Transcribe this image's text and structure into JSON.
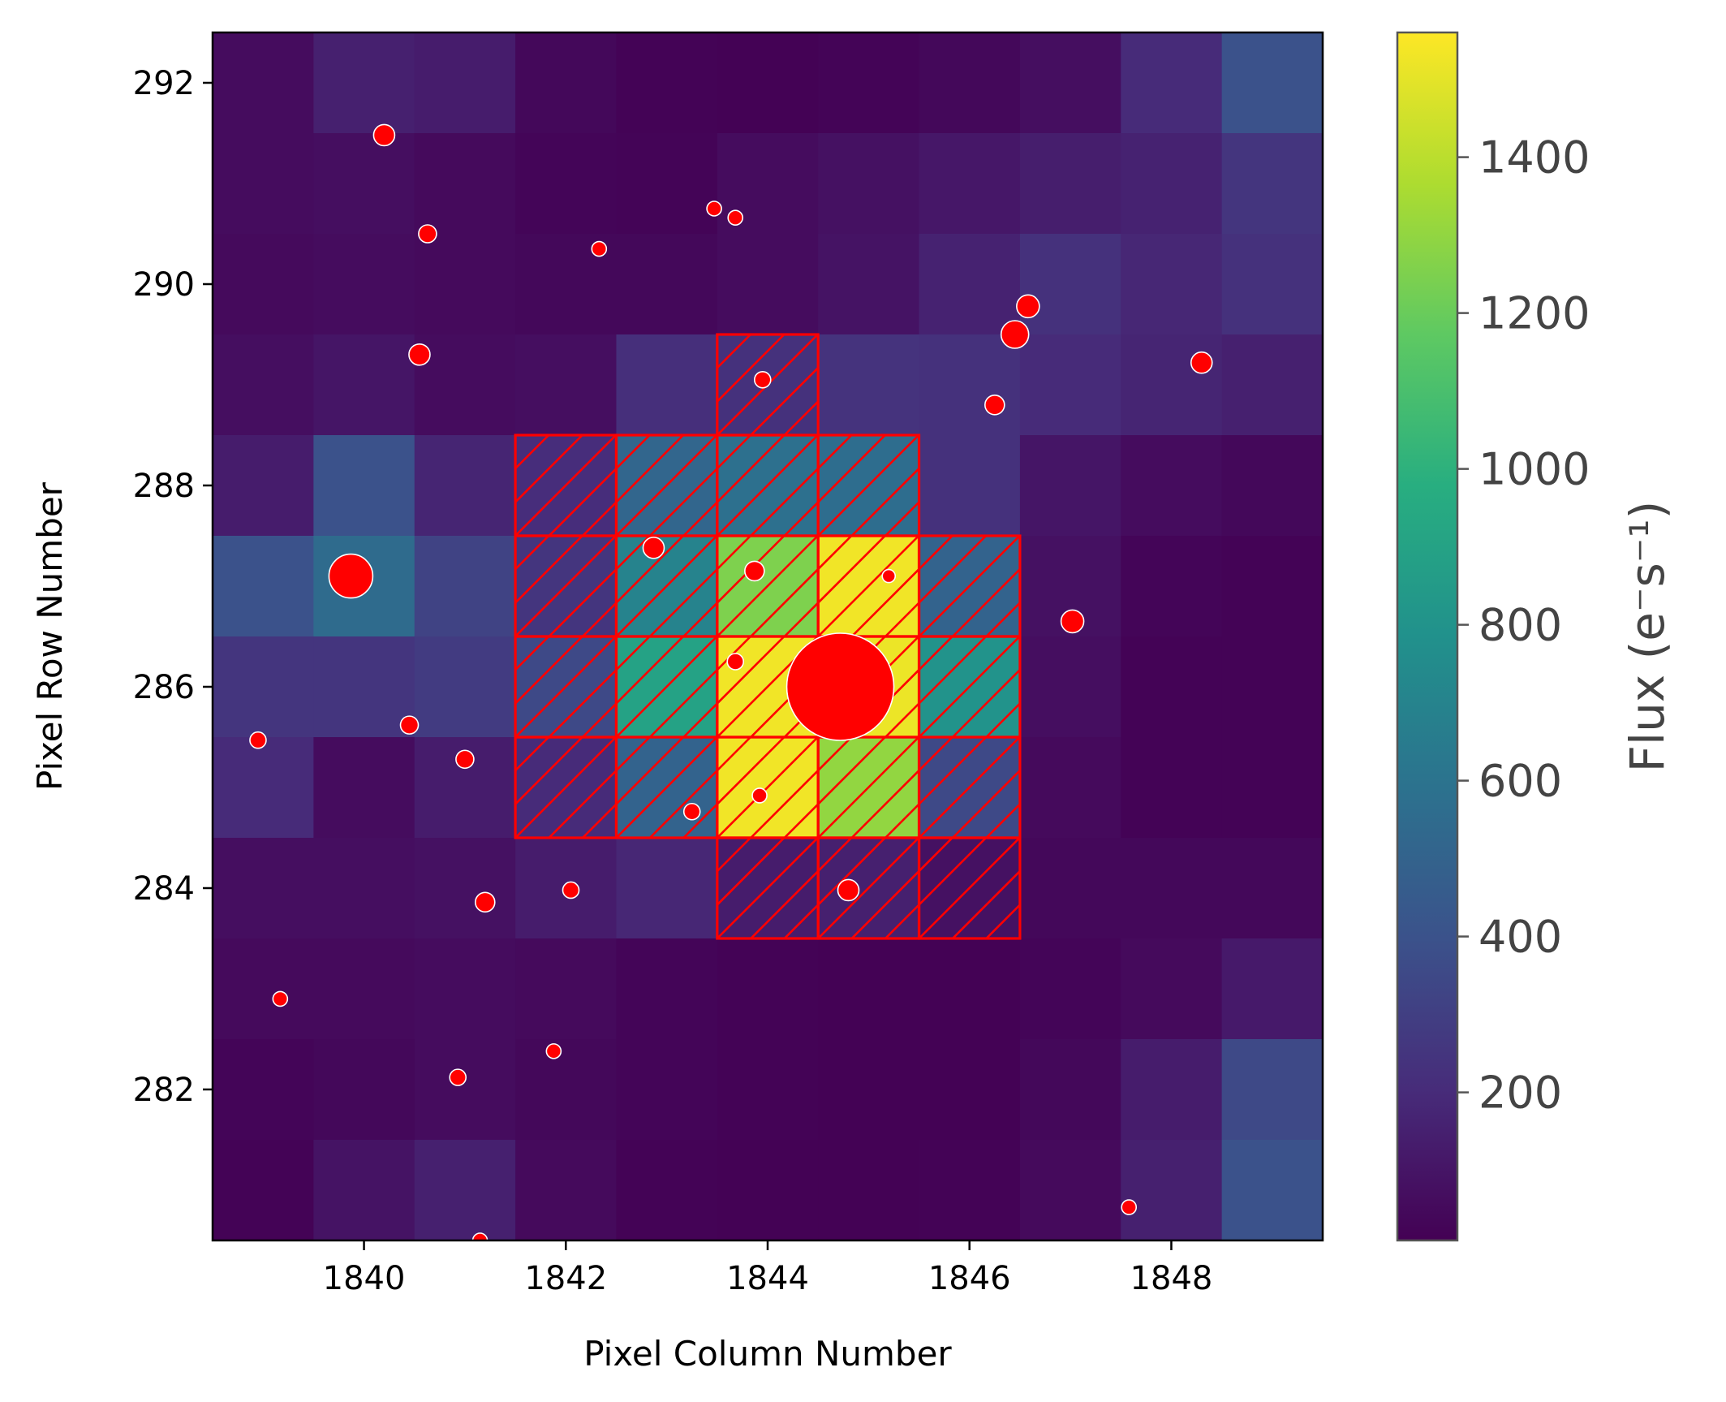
{
  "chart_data": {
    "type": "heatmap",
    "title": "",
    "xlabel": "Pixel Column Number",
    "ylabel": "Pixel Row Number",
    "colorbar_label": "Flux (e⁻s⁻¹)",
    "colormap": "viridis",
    "xlim": [
      1838.5,
      1849.5
    ],
    "ylim": [
      280.5,
      292.5
    ],
    "x_ticks": [
      1840,
      1842,
      1844,
      1846,
      1848
    ],
    "y_ticks": [
      282,
      284,
      286,
      288,
      290,
      292
    ],
    "colorbar_range": [
      10,
      1560
    ],
    "colorbar_ticks": [
      200,
      400,
      600,
      800,
      1000,
      1200,
      1400
    ],
    "columns": [
      1839,
      1840,
      1841,
      1842,
      1843,
      1844,
      1845,
      1846,
      1847,
      1848,
      1849
    ],
    "rows": [
      292,
      291,
      290,
      289,
      288,
      287,
      286,
      285,
      284,
      283,
      282,
      281
    ],
    "flux": [
      [
        60,
        150,
        130,
        40,
        20,
        15,
        25,
        40,
        70,
        200,
        400
      ],
      [
        60,
        70,
        50,
        30,
        25,
        60,
        80,
        110,
        140,
        160,
        250
      ],
      [
        50,
        60,
        50,
        40,
        40,
        60,
        90,
        160,
        230,
        180,
        230
      ],
      [
        70,
        100,
        60,
        70,
        220,
        230,
        240,
        230,
        200,
        170,
        150
      ],
      [
        130,
        400,
        170,
        210,
        520,
        580,
        560,
        230,
        100,
        60,
        40
      ],
      [
        400,
        550,
        320,
        250,
        700,
        1250,
        1530,
        500,
        80,
        30,
        20
      ],
      [
        250,
        250,
        280,
        350,
        900,
        1530,
        1520,
        800,
        70,
        20,
        20
      ],
      [
        200,
        60,
        130,
        200,
        500,
        1530,
        1300,
        350,
        50,
        20,
        20
      ],
      [
        70,
        70,
        80,
        130,
        180,
        130,
        150,
        80,
        40,
        40,
        40
      ],
      [
        50,
        50,
        60,
        50,
        30,
        20,
        15,
        15,
        30,
        50,
        120
      ],
      [
        30,
        40,
        60,
        40,
        30,
        20,
        15,
        15,
        40,
        130,
        350
      ],
      [
        20,
        90,
        150,
        50,
        20,
        15,
        15,
        20,
        50,
        150,
        400
      ]
    ],
    "aperture_pixels": [
      [
        1844,
        289
      ],
      [
        1842,
        288
      ],
      [
        1843,
        288
      ],
      [
        1844,
        288
      ],
      [
        1845,
        288
      ],
      [
        1842,
        287
      ],
      [
        1843,
        287
      ],
      [
        1844,
        287
      ],
      [
        1845,
        287
      ],
      [
        1846,
        287
      ],
      [
        1842,
        286
      ],
      [
        1843,
        286
      ],
      [
        1844,
        286
      ],
      [
        1845,
        286
      ],
      [
        1846,
        286
      ],
      [
        1842,
        285
      ],
      [
        1843,
        285
      ],
      [
        1844,
        285
      ],
      [
        1845,
        285
      ],
      [
        1846,
        285
      ],
      [
        1844,
        284
      ],
      [
        1845,
        284
      ],
      [
        1846,
        284
      ]
    ],
    "stars": [
      {
        "x": 1844.72,
        "y": 286.0,
        "size": 66
      },
      {
        "x": 1839.87,
        "y": 287.1,
        "size": 27
      },
      {
        "x": 1846.45,
        "y": 289.5,
        "size": 17
      },
      {
        "x": 1846.58,
        "y": 289.78,
        "size": 14
      },
      {
        "x": 1847.02,
        "y": 286.65,
        "size": 14
      },
      {
        "x": 1842.87,
        "y": 287.38,
        "size": 13
      },
      {
        "x": 1840.2,
        "y": 291.48,
        "size": 13
      },
      {
        "x": 1840.55,
        "y": 289.3,
        "size": 13
      },
      {
        "x": 1848.3,
        "y": 289.22,
        "size": 13
      },
      {
        "x": 1844.8,
        "y": 283.98,
        "size": 13
      },
      {
        "x": 1843.87,
        "y": 287.15,
        "size": 12
      },
      {
        "x": 1841.2,
        "y": 283.86,
        "size": 12
      },
      {
        "x": 1846.25,
        "y": 288.8,
        "size": 12
      },
      {
        "x": 1840.63,
        "y": 290.5,
        "size": 11
      },
      {
        "x": 1841.0,
        "y": 285.28,
        "size": 11
      },
      {
        "x": 1840.45,
        "y": 285.62,
        "size": 11
      },
      {
        "x": 1843.95,
        "y": 289.05,
        "size": 10
      },
      {
        "x": 1840.93,
        "y": 282.12,
        "size": 10
      },
      {
        "x": 1838.95,
        "y": 285.47,
        "size": 10
      },
      {
        "x": 1843.68,
        "y": 286.25,
        "size": 10
      },
      {
        "x": 1843.25,
        "y": 284.76,
        "size": 10
      },
      {
        "x": 1842.05,
        "y": 283.98,
        "size": 10
      },
      {
        "x": 1843.47,
        "y": 290.75,
        "size": 9
      },
      {
        "x": 1843.68,
        "y": 290.66,
        "size": 9
      },
      {
        "x": 1842.33,
        "y": 290.35,
        "size": 9
      },
      {
        "x": 1843.92,
        "y": 284.92,
        "size": 9
      },
      {
        "x": 1839.17,
        "y": 282.9,
        "size": 9
      },
      {
        "x": 1841.88,
        "y": 282.38,
        "size": 9
      },
      {
        "x": 1847.58,
        "y": 280.83,
        "size": 9
      },
      {
        "x": 1845.2,
        "y": 287.1,
        "size": 8
      },
      {
        "x": 1841.15,
        "y": 280.5,
        "size": 9
      }
    ]
  }
}
